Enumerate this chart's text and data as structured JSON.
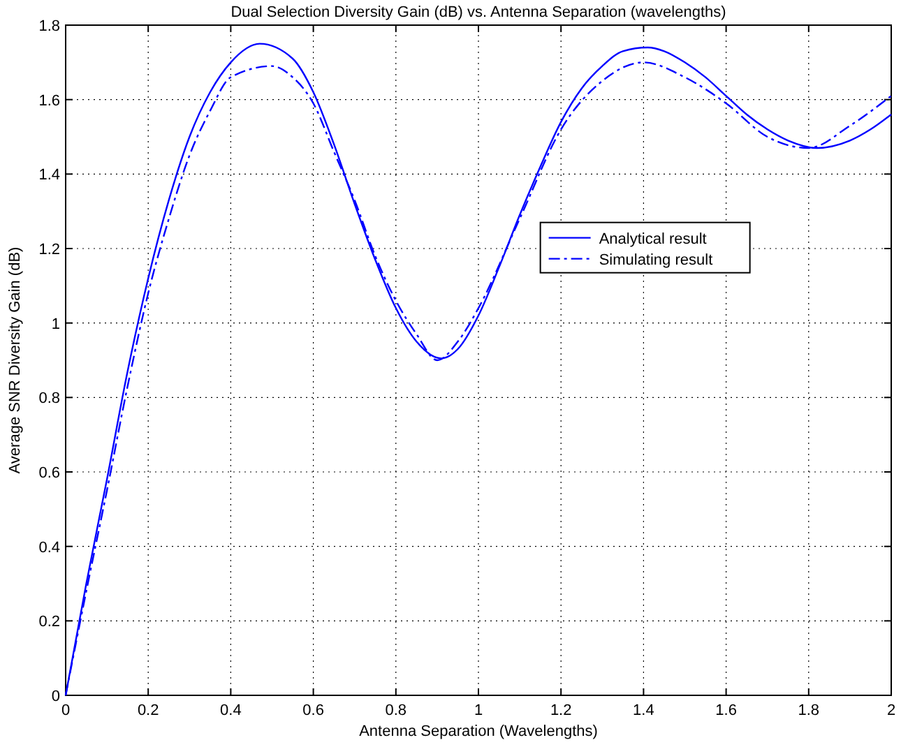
{
  "chart_data": {
    "type": "line",
    "title": "Dual Selection Diversity Gain (dB) vs. Antenna Separation (wavelengths)",
    "xlabel": "Antenna Separation (Wavelengths)",
    "ylabel": "Average SNR Diversity Gain (dB)",
    "xlim": [
      0,
      2
    ],
    "ylim": [
      0,
      1.8
    ],
    "xticks": [
      0,
      0.2,
      0.4,
      0.6,
      0.8,
      1,
      1.2,
      1.4,
      1.6,
      1.8,
      2
    ],
    "yticks": [
      0,
      0.2,
      0.4,
      0.6,
      0.8,
      1,
      1.2,
      1.4,
      1.6,
      1.8
    ],
    "grid": true,
    "legend": "right",
    "series": [
      {
        "name": "Analytical result",
        "color": "#0000ff",
        "line_style": "solid",
        "x": [
          0,
          0.05,
          0.1,
          0.15,
          0.2,
          0.25,
          0.3,
          0.35,
          0.4,
          0.47,
          0.55,
          0.6,
          0.65,
          0.7,
          0.75,
          0.8,
          0.85,
          0.91,
          0.95,
          1,
          1.05,
          1.1,
          1.15,
          1.2,
          1.25,
          1.3,
          1.35,
          1.41,
          1.45,
          1.5,
          1.55,
          1.6,
          1.65,
          1.7,
          1.75,
          1.82,
          1.9,
          1.95,
          2
        ],
        "values": [
          0,
          0.3,
          0.58,
          0.87,
          1.12,
          1.33,
          1.5,
          1.62,
          1.7,
          1.75,
          1.71,
          1.62,
          1.48,
          1.32,
          1.17,
          1.04,
          0.95,
          0.905,
          0.93,
          1.02,
          1.15,
          1.29,
          1.42,
          1.54,
          1.63,
          1.69,
          1.73,
          1.74,
          1.73,
          1.7,
          1.66,
          1.61,
          1.56,
          1.52,
          1.49,
          1.47,
          1.49,
          1.52,
          1.56
        ]
      },
      {
        "name": "Simulating result",
        "color": "#0000ff",
        "line_style": "dashed",
        "x": [
          0,
          0.05,
          0.1,
          0.15,
          0.2,
          0.25,
          0.3,
          0.35,
          0.4,
          0.5,
          0.55,
          0.6,
          0.65,
          0.7,
          0.75,
          0.8,
          0.85,
          0.9,
          0.95,
          1,
          1.1,
          1.2,
          1.3,
          1.4,
          1.5,
          1.6,
          1.7,
          1.8,
          1.9,
          2
        ],
        "values": [
          0,
          0.28,
          0.55,
          0.83,
          1.08,
          1.28,
          1.45,
          1.57,
          1.66,
          1.69,
          1.66,
          1.59,
          1.46,
          1.33,
          1.18,
          1.06,
          0.97,
          0.9,
          0.95,
          1.04,
          1.28,
          1.52,
          1.65,
          1.7,
          1.66,
          1.59,
          1.5,
          1.47,
          1.53,
          1.61
        ]
      }
    ]
  }
}
